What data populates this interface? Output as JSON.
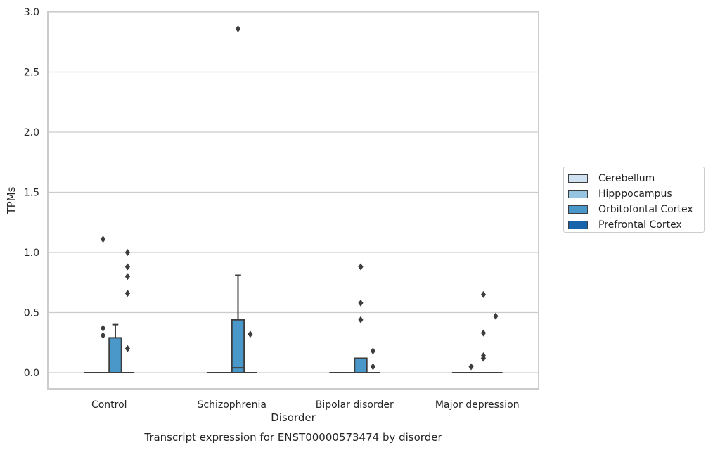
{
  "chart_data": {
    "type": "box",
    "title": "Transcript expression for ENST00000573474 by disorder",
    "xlabel": "Disorder",
    "ylabel": "TPMs",
    "ylim": [
      -0.13,
      3.0
    ],
    "yticks": [
      "0.0",
      "0.5",
      "1.0",
      "1.5",
      "2.0",
      "2.5",
      "3.0"
    ],
    "ytick_values": [
      0,
      0.5,
      1.0,
      1.5,
      2.0,
      2.5,
      3.0
    ],
    "categories": [
      "Control",
      "Schizophrenia",
      "Bipolar disorder",
      "Major depression"
    ],
    "grid": true,
    "legend_position": "right",
    "series": [
      {
        "name": "Cerebellum",
        "color": "#d0e1f2",
        "boxes": [
          {
            "q1": 0,
            "median": 0,
            "q3": 0,
            "whisker_low": 0,
            "whisker_high": 0,
            "outliers": []
          },
          {
            "q1": 0,
            "median": 0,
            "q3": 0,
            "whisker_low": 0,
            "whisker_high": 0,
            "outliers": []
          },
          {
            "q1": 0,
            "median": 0,
            "q3": 0,
            "whisker_low": 0,
            "whisker_high": 0,
            "outliers": []
          },
          {
            "q1": 0,
            "median": 0,
            "q3": 0,
            "whisker_low": 0,
            "whisker_high": 0,
            "outliers": []
          }
        ]
      },
      {
        "name": "Hipppocampus",
        "color": "#94c4df",
        "boxes": [
          {
            "q1": 0,
            "median": 0,
            "q3": 0,
            "whisker_low": 0,
            "whisker_high": 0,
            "outliers": [
              0.31,
              0.37,
              1.11
            ]
          },
          {
            "q1": 0,
            "median": 0,
            "q3": 0,
            "whisker_low": 0,
            "whisker_high": 0,
            "outliers": []
          },
          {
            "q1": 0,
            "median": 0,
            "q3": 0,
            "whisker_low": 0,
            "whisker_high": 0,
            "outliers": []
          },
          {
            "q1": 0,
            "median": 0,
            "q3": 0,
            "whisker_low": 0,
            "whisker_high": 0,
            "outliers": [
              0.05
            ]
          }
        ]
      },
      {
        "name": "Orbitofontal Cortex",
        "color": "#4a98c9",
        "boxes": [
          {
            "q1": 0,
            "median": 0,
            "q3": 0.29,
            "whisker_low": 0,
            "whisker_high": 0.4,
            "outliers": []
          },
          {
            "q1": 0,
            "median": 0.04,
            "q3": 0.44,
            "whisker_low": 0,
            "whisker_high": 0.81,
            "outliers": [
              2.86
            ]
          },
          {
            "q1": 0,
            "median": 0,
            "q3": 0.12,
            "whisker_low": 0,
            "whisker_high": 0.12,
            "outliers": [
              0.44,
              0.58,
              0.88
            ]
          },
          {
            "q1": 0,
            "median": 0,
            "q3": 0,
            "whisker_low": 0,
            "whisker_high": 0,
            "outliers": [
              0.12,
              0.14,
              0.33,
              0.65
            ]
          }
        ]
      },
      {
        "name": "Prefrontal Cortex",
        "color": "#1764ab",
        "boxes": [
          {
            "q1": 0,
            "median": 0,
            "q3": 0,
            "whisker_low": 0,
            "whisker_high": 0,
            "outliers": [
              0.2,
              0.66,
              0.8,
              0.88,
              1.0
            ]
          },
          {
            "q1": 0,
            "median": 0,
            "q3": 0,
            "whisker_low": 0,
            "whisker_high": 0,
            "outliers": [
              0.32
            ]
          },
          {
            "q1": 0,
            "median": 0,
            "q3": 0,
            "whisker_low": 0,
            "whisker_high": 0,
            "outliers": [
              0.05,
              0.18
            ]
          },
          {
            "q1": 0,
            "median": 0,
            "q3": 0,
            "whisker_low": 0,
            "whisker_high": 0,
            "outliers": [
              0.47
            ]
          }
        ]
      }
    ]
  }
}
